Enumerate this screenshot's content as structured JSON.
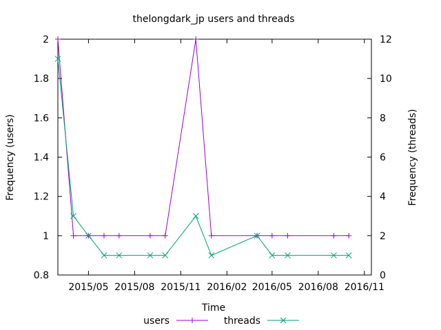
{
  "chart_data": {
    "type": "line",
    "title": "thelongdark_jp users and threads",
    "xlabel": "Time",
    "ylabel_left": "Frequency (users)",
    "ylabel_right": "Frequency (threads)",
    "x_range": [
      "2015-03-01",
      "2016-11-15"
    ],
    "x_ticks": [
      {
        "date": "2015-05-01",
        "label": "2015/05"
      },
      {
        "date": "2015-08-01",
        "label": "2015/08"
      },
      {
        "date": "2015-11-01",
        "label": "2015/11"
      },
      {
        "date": "2016-02-01",
        "label": "2016/02"
      },
      {
        "date": "2016-05-01",
        "label": "2016/05"
      },
      {
        "date": "2016-08-01",
        "label": "2016/08"
      },
      {
        "date": "2016-11-01",
        "label": "2016/11"
      }
    ],
    "y_left": {
      "range": [
        0.8,
        2
      ],
      "ticks": [
        0.8,
        1,
        1.2,
        1.4,
        1.6,
        1.8,
        2
      ],
      "tick_labels": [
        "0.8",
        "1",
        "1.2",
        "1.4",
        "1.6",
        "1.8",
        "2"
      ]
    },
    "y_right": {
      "range": [
        0,
        12
      ],
      "ticks": [
        0,
        2,
        4,
        6,
        8,
        10,
        12
      ],
      "tick_labels": [
        "0",
        "2",
        "4",
        "6",
        "8",
        "10",
        "12"
      ]
    },
    "grid": false,
    "legend_placement": "bottom",
    "series": [
      {
        "name": "users",
        "axis": "left",
        "color": "#9400d3",
        "marker": "plus",
        "x": [
          "2015-03-01",
          "2015-04-01",
          "2015-05-01",
          "2015-06-01",
          "2015-07-01",
          "2015-09-01",
          "2015-10-01",
          "2015-12-01",
          "2016-01-01",
          "2016-04-01",
          "2016-05-01",
          "2016-06-01",
          "2016-09-01",
          "2016-10-01"
        ],
        "values": [
          2,
          1,
          1,
          1,
          1,
          1,
          1,
          2,
          1,
          1,
          1,
          1,
          1,
          1
        ]
      },
      {
        "name": "threads",
        "axis": "right",
        "color": "#009e73",
        "marker": "cross",
        "x": [
          "2015-03-01",
          "2015-04-01",
          "2015-05-01",
          "2015-06-01",
          "2015-07-01",
          "2015-09-01",
          "2015-10-01",
          "2015-12-01",
          "2016-01-01",
          "2016-04-01",
          "2016-05-01",
          "2016-06-01",
          "2016-09-01",
          "2016-10-01"
        ],
        "values": [
          11,
          3,
          2,
          1,
          1,
          1,
          1,
          3,
          1,
          2,
          1,
          1,
          1,
          1
        ]
      }
    ]
  }
}
